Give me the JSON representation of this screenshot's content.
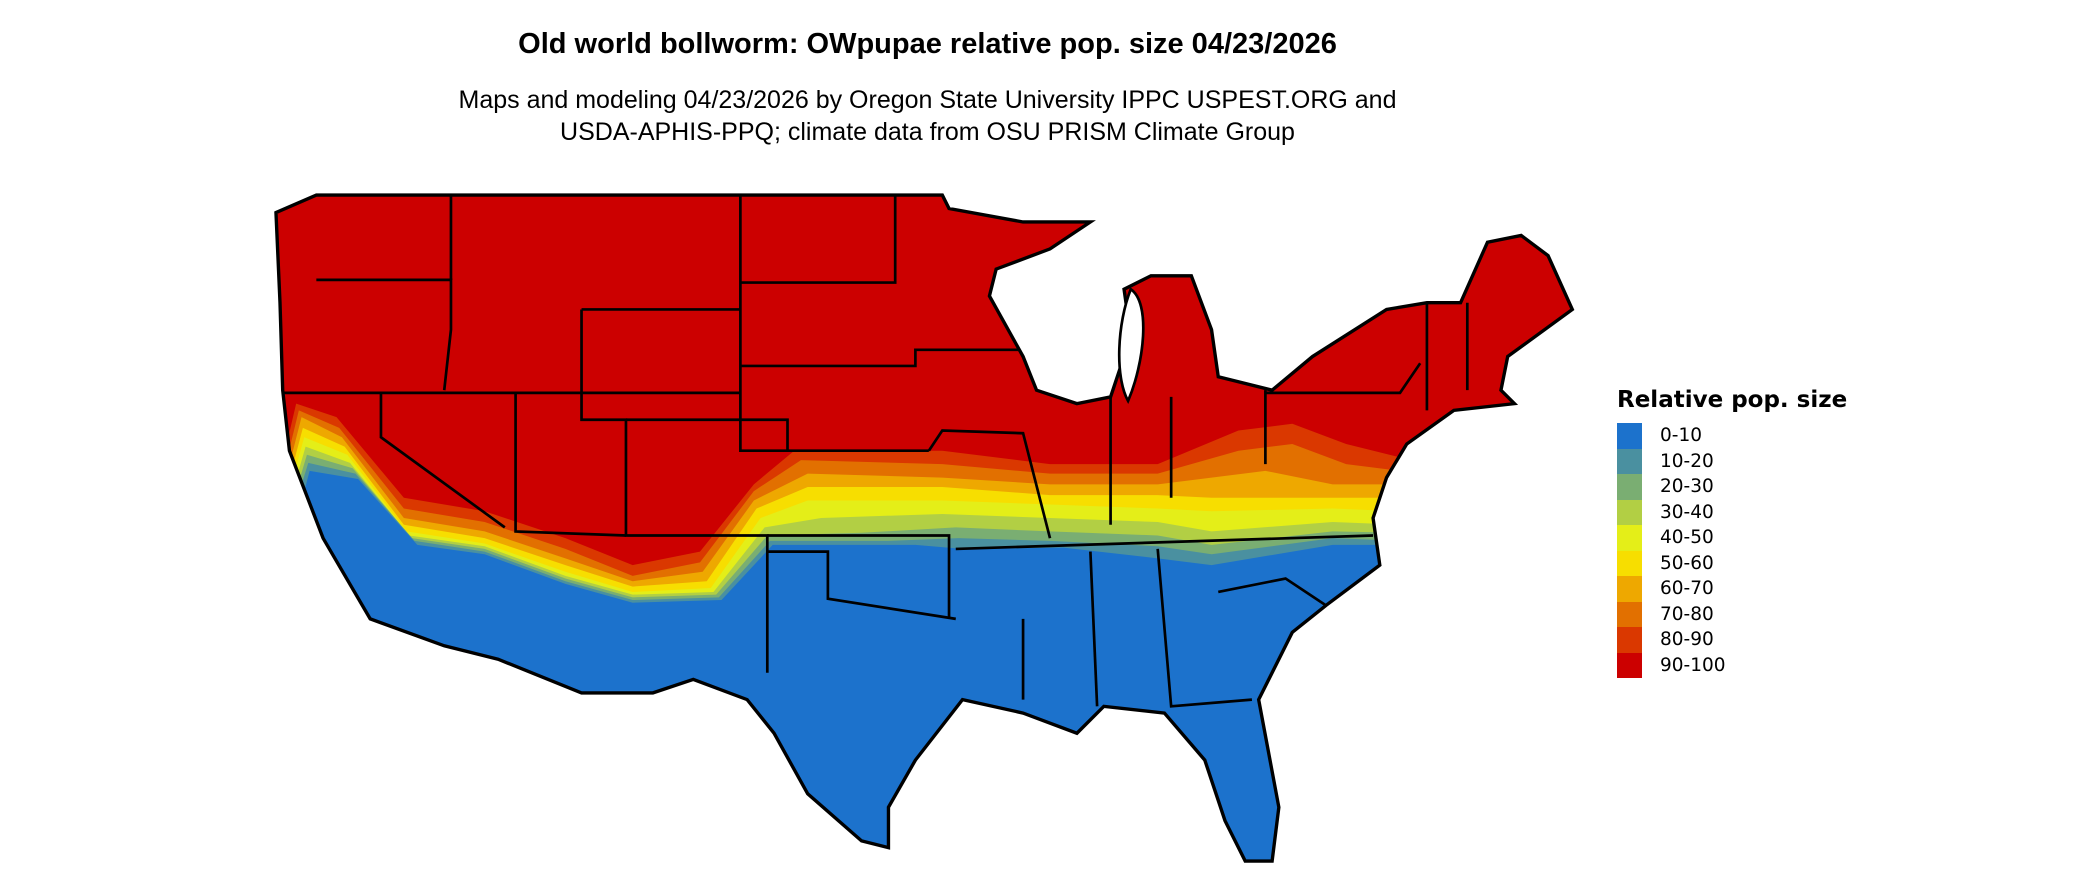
{
  "title": "Old world bollworm: OWpupae relative pop. size 04/23/2026",
  "subtitle_line1": "Maps and modeling 04/23/2026 by Oregon State University IPPC USPEST.ORG and",
  "subtitle_line2": "USDA-APHIS-PPQ; climate data from OSU PRISM Climate Group",
  "map": {
    "region": "Contiguous United States",
    "border_color": "#000000"
  },
  "legend": {
    "title": "Relative pop. size",
    "items": [
      {
        "label": "0-10",
        "color": "#1C72CC"
      },
      {
        "label": "10-20",
        "color": "#4A90A0"
      },
      {
        "label": "20-30",
        "color": "#7AAE72"
      },
      {
        "label": "30-40",
        "color": "#B2CF44"
      },
      {
        "label": "40-50",
        "color": "#E4EE18"
      },
      {
        "label": "50-60",
        "color": "#F7DE00"
      },
      {
        "label": "60-70",
        "color": "#EEA800"
      },
      {
        "label": "70-80",
        "color": "#E27000"
      },
      {
        "label": "80-90",
        "color": "#DA3800"
      },
      {
        "label": "90-100",
        "color": "#CC0000"
      }
    ]
  }
}
